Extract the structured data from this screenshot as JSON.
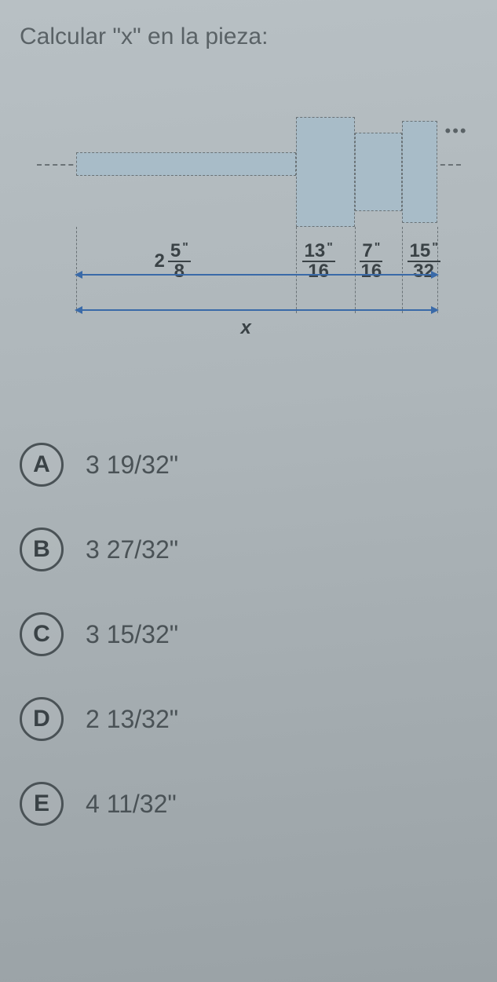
{
  "question": "Calcular \"x\" en la pieza:",
  "dimensions": {
    "d1": {
      "whole": "2",
      "num": "5",
      "den": "8",
      "mark": "\""
    },
    "d2": {
      "num": "13",
      "den": "16",
      "mark": "\""
    },
    "d3": {
      "num": "7",
      "den": "16",
      "mark": "\""
    },
    "d4": {
      "num": "15",
      "den": "32",
      "mark": "\""
    },
    "total_var": "x"
  },
  "diagram_style": {
    "fill": "#a8bcc8",
    "stroke": "#6a7276",
    "dimline": "#3a6aa8"
  },
  "options": [
    {
      "letter": "A",
      "text": "3 19/32\""
    },
    {
      "letter": "B",
      "text": "3 27/32\""
    },
    {
      "letter": "C",
      "text": "3 15/32\""
    },
    {
      "letter": "D",
      "text": "2 13/32\""
    },
    {
      "letter": "E",
      "text": "4 11/32\""
    }
  ]
}
